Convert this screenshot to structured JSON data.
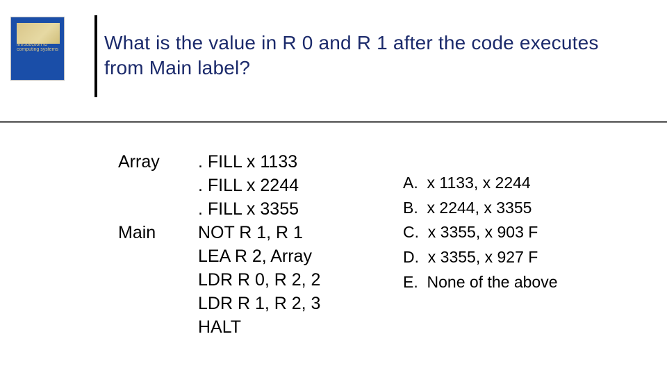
{
  "title_line1": "What is the value in R 0 and R 1 after the code executes",
  "title_line2": "from Main label?",
  "labels": [
    "Array",
    "",
    "",
    "Main",
    "",
    "",
    "",
    ""
  ],
  "instrs": [
    ". FILL x 1133",
    ". FILL x 2244",
    ". FILL x 3355",
    "NOT R 1, R 1",
    "LEA R 2, Array",
    "LDR R 0, R 2, 2",
    "LDR R 1, R 2, 3",
    "HALT"
  ],
  "answers": [
    "A.  x 1133, x 2244",
    "B.  x 2244, x 3355",
    "C.  x 3355, x 903 F",
    "D.  x 3355, x 927 F",
    "E.  None of the above"
  ],
  "colors": {
    "title": "#1b2a6b",
    "logo_bg": "#1a4ea8",
    "text": "#000000",
    "bg": "#ffffff"
  },
  "font_sizes": {
    "title": 28,
    "body": 25,
    "answers": 23
  }
}
